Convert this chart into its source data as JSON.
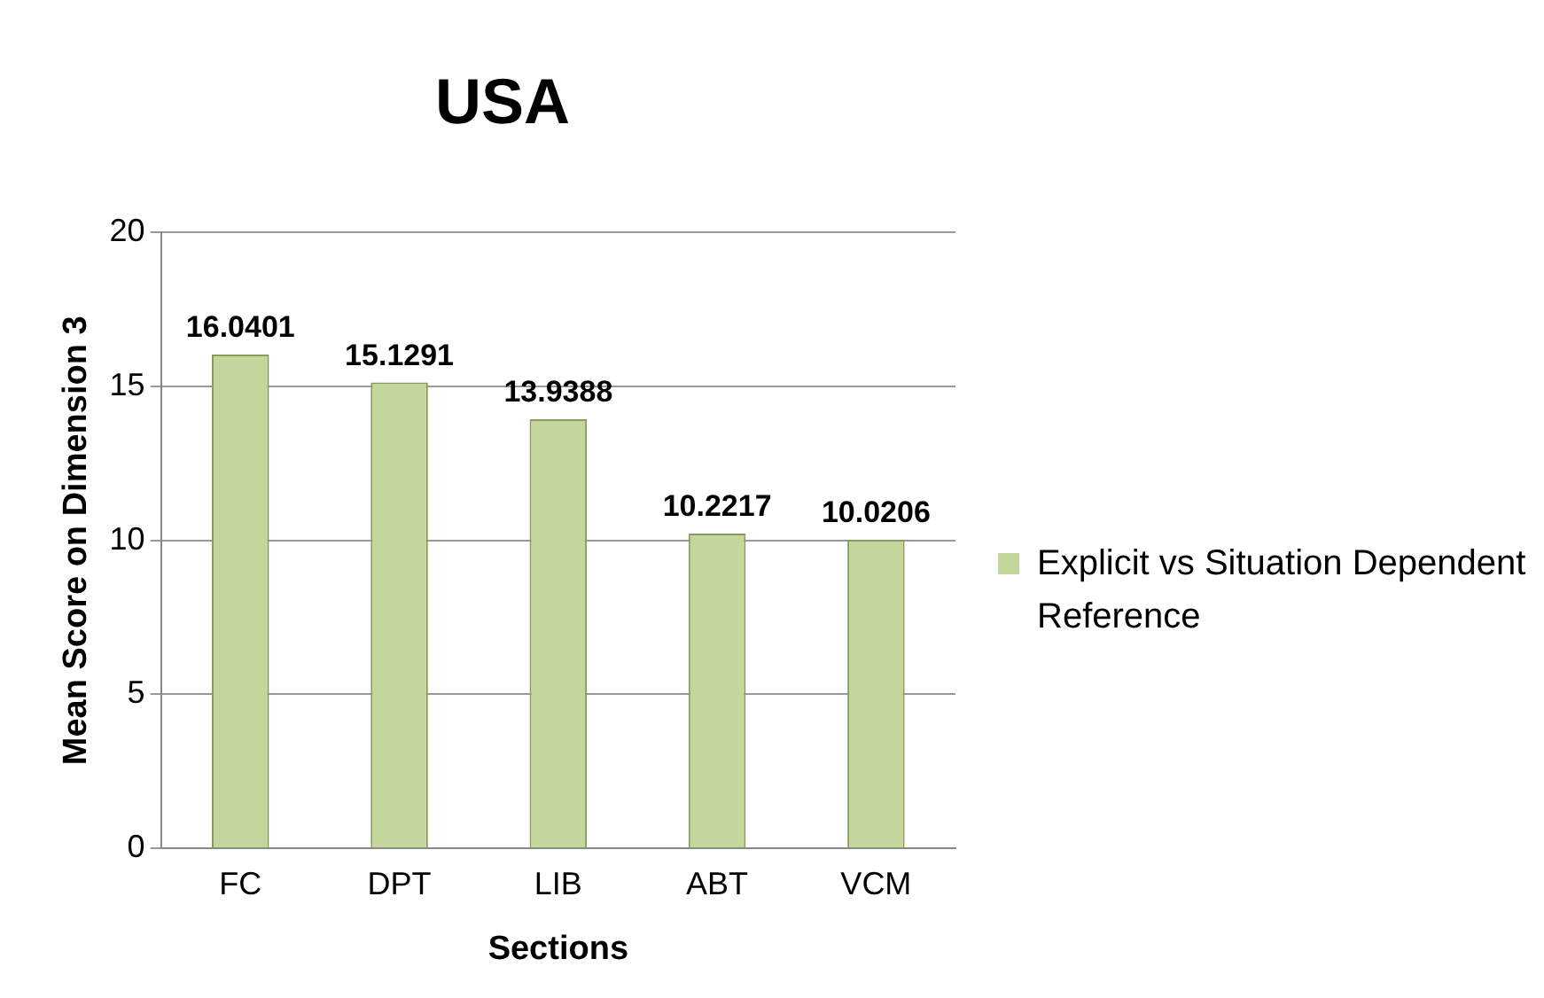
{
  "chart_data": {
    "type": "bar",
    "title": "USA",
    "xlabel": "Sections",
    "ylabel": "Mean Score on Dimension 3",
    "categories": [
      "FC",
      "DPT",
      "LIB",
      "ABT",
      "VCM"
    ],
    "series": [
      {
        "name": "Explicit vs Situation Dependent Reference",
        "color": "#c3d69b",
        "values": [
          16.0401,
          15.1291,
          13.9388,
          10.2217,
          10.0206
        ]
      }
    ],
    "ylim": [
      0,
      20
    ],
    "yticks": [
      0,
      5,
      10,
      15,
      20
    ],
    "grid": "y",
    "legend": "right",
    "data_labels": true
  }
}
